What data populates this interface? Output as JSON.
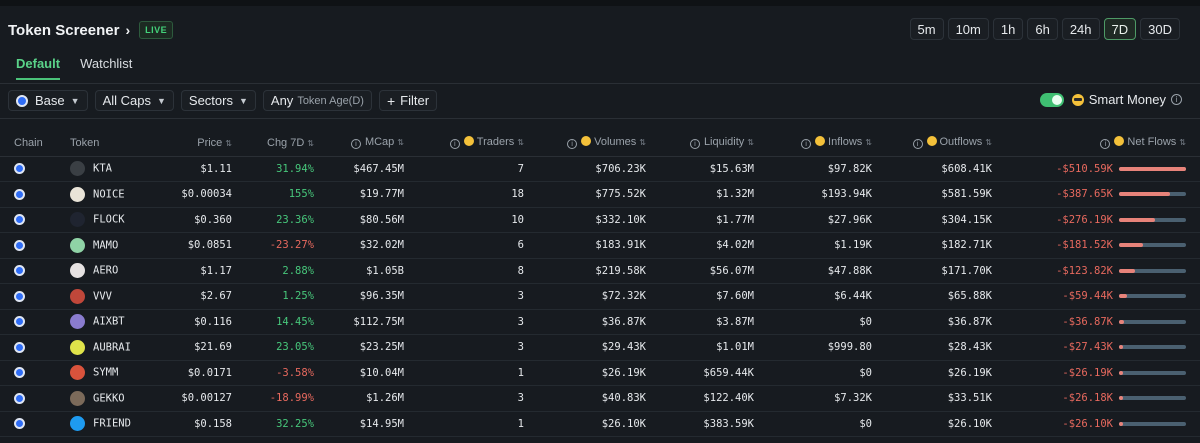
{
  "header": {
    "title": "Token Screener",
    "chevron": "›",
    "live_badge": "LIVE"
  },
  "timeframes": [
    "5m",
    "10m",
    "1h",
    "6h",
    "24h",
    "7D",
    "30D"
  ],
  "active_timeframe": "7D",
  "tabs": [
    {
      "label": "Default",
      "active": true
    },
    {
      "label": "Watchlist",
      "active": false
    }
  ],
  "filters": {
    "chain": "Base",
    "caps": "All Caps",
    "sectors": "Sectors",
    "age_prefix": "Any",
    "age_label": "Token Age(D)",
    "add_filter": "Filter"
  },
  "smart_money": {
    "label": "Smart Money",
    "enabled": true
  },
  "columns": {
    "chain": "Chain",
    "token": "Token",
    "price": "Price",
    "chg": "Chg 7D",
    "mcap": "MCap",
    "traders": "Traders",
    "volumes": "Volumes",
    "liquidity": "Liquidity",
    "inflows": "Inflows",
    "outflows": "Outflows",
    "netflows": "Net Flows"
  },
  "colors": {
    "accent_green": "#47c77b",
    "negative_red": "#e7695e",
    "base_blue": "#2f6df6"
  },
  "rows": [
    {
      "token": "KTA",
      "icon_color": "#3a3f44",
      "price": "$1.11",
      "chg": "31.94%",
      "chg_sign": "pos",
      "mcap": "$467.45M",
      "traders": "7",
      "volumes": "$706.23K",
      "liquidity": "$15.63M",
      "inflows": "$97.82K",
      "outflows": "$608.41K",
      "netflows": "-$510.59K",
      "net_ratio": 1.0
    },
    {
      "token": "NOICE",
      "icon_color": "#e9e4d8",
      "price": "$0.00034",
      "chg": "155%",
      "chg_sign": "pos",
      "mcap": "$19.77M",
      "traders": "18",
      "volumes": "$775.52K",
      "liquidity": "$1.32M",
      "inflows": "$193.94K",
      "outflows": "$581.59K",
      "netflows": "-$387.65K",
      "net_ratio": 0.76
    },
    {
      "token": "FLOCK",
      "icon_color": "#1f2430",
      "price": "$0.360",
      "chg": "23.36%",
      "chg_sign": "pos",
      "mcap": "$80.56M",
      "traders": "10",
      "volumes": "$332.10K",
      "liquidity": "$1.77M",
      "inflows": "$27.96K",
      "outflows": "$304.15K",
      "netflows": "-$276.19K",
      "net_ratio": 0.54
    },
    {
      "token": "MAMO",
      "icon_color": "#8fd3a6",
      "price": "$0.0851",
      "chg": "-23.27%",
      "chg_sign": "neg",
      "mcap": "$32.02M",
      "traders": "6",
      "volumes": "$183.91K",
      "liquidity": "$4.02M",
      "inflows": "$1.19K",
      "outflows": "$182.71K",
      "netflows": "-$181.52K",
      "net_ratio": 0.36
    },
    {
      "token": "AERO",
      "icon_color": "#e6e2e2",
      "price": "$1.17",
      "chg": "2.88%",
      "chg_sign": "pos",
      "mcap": "$1.05B",
      "traders": "8",
      "volumes": "$219.58K",
      "liquidity": "$56.07M",
      "inflows": "$47.88K",
      "outflows": "$171.70K",
      "netflows": "-$123.82K",
      "net_ratio": 0.24
    },
    {
      "token": "VVV",
      "icon_color": "#c0473a",
      "price": "$2.67",
      "chg": "1.25%",
      "chg_sign": "pos",
      "mcap": "$96.35M",
      "traders": "3",
      "volumes": "$72.32K",
      "liquidity": "$7.60M",
      "inflows": "$6.44K",
      "outflows": "$65.88K",
      "netflows": "-$59.44K",
      "net_ratio": 0.12
    },
    {
      "token": "AIXBT",
      "icon_color": "#8a7ccf",
      "price": "$0.116",
      "chg": "14.45%",
      "chg_sign": "pos",
      "mcap": "$112.75M",
      "traders": "3",
      "volumes": "$36.87K",
      "liquidity": "$3.87M",
      "inflows": "$0",
      "outflows": "$36.87K",
      "netflows": "-$36.87K",
      "net_ratio": 0.07
    },
    {
      "token": "AUBRAI",
      "icon_color": "#dfe34a",
      "price": "$21.69",
      "chg": "23.05%",
      "chg_sign": "pos",
      "mcap": "$23.25M",
      "traders": "3",
      "volumes": "$29.43K",
      "liquidity": "$1.01M",
      "inflows": "$999.80",
      "outflows": "$28.43K",
      "netflows": "-$27.43K",
      "net_ratio": 0.05
    },
    {
      "token": "SYMM",
      "icon_color": "#d9533c",
      "price": "$0.0171",
      "chg": "-3.58%",
      "chg_sign": "neg",
      "mcap": "$10.04M",
      "traders": "1",
      "volumes": "$26.19K",
      "liquidity": "$659.44K",
      "inflows": "$0",
      "outflows": "$26.19K",
      "netflows": "-$26.19K",
      "net_ratio": 0.05
    },
    {
      "token": "GEKKO",
      "icon_color": "#7b6a5a",
      "price": "$0.00127",
      "chg": "-18.99%",
      "chg_sign": "neg",
      "mcap": "$1.26M",
      "traders": "3",
      "volumes": "$40.83K",
      "liquidity": "$122.40K",
      "inflows": "$7.32K",
      "outflows": "$33.51K",
      "netflows": "-$26.18K",
      "net_ratio": 0.05
    },
    {
      "token": "FRIEND",
      "icon_color": "#1e9bf0",
      "price": "$0.158",
      "chg": "32.25%",
      "chg_sign": "pos",
      "mcap": "$14.95M",
      "traders": "1",
      "volumes": "$26.10K",
      "liquidity": "$383.59K",
      "inflows": "$0",
      "outflows": "$26.10K",
      "netflows": "-$26.10K",
      "net_ratio": 0.05
    }
  ]
}
